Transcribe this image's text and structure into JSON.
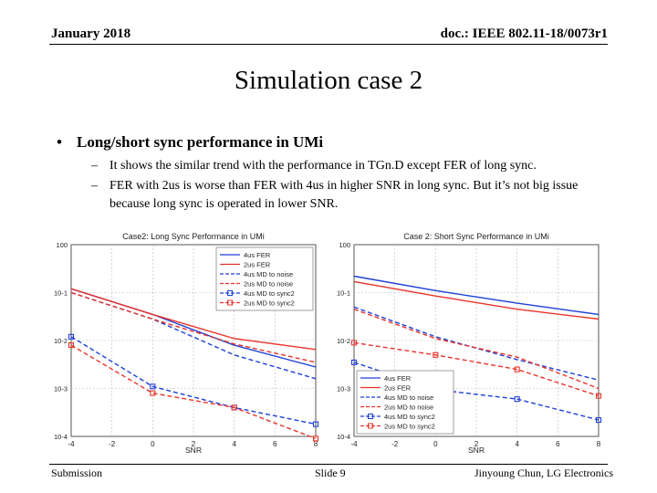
{
  "header": {
    "date": "January 2018",
    "doc": "doc.: IEEE 802.11-18/0073r1"
  },
  "title": "Simulation case 2",
  "bullet": {
    "marker": "•",
    "text": "Long/short sync performance in UMi"
  },
  "subbullets": [
    {
      "dash": "–",
      "text": "It shows the similar trend with the performance in TGn.D except FER of long sync."
    },
    {
      "dash": "–",
      "text": "FER with 2us is worse than FER with 4us in higher SNR in long sync. But it’s not big issue because long sync is operated in lower SNR."
    }
  ],
  "footer": {
    "left": "Submission",
    "center": "Slide 9",
    "right": "Jinyoung Chun, LG Electronics"
  },
  "colors": {
    "blue": "#1f3fd6",
    "red": "#e8332a"
  },
  "chart_data": [
    {
      "type": "line",
      "title": "Case2: Long Sync Performance in UMi",
      "xlabel": "SNR",
      "ylabel": "",
      "xlim": [
        -4,
        8
      ],
      "ylim": [
        0.0001,
        1
      ],
      "yscale": "log",
      "xticks": [
        "-4",
        "-2",
        "0",
        "2",
        "4",
        "6",
        "8"
      ],
      "yticks": [
        "10-4",
        "10-3",
        "10-2",
        "10-1",
        "100"
      ],
      "grid": true,
      "legend_position": "top-right",
      "x": [
        -4,
        0,
        4,
        8
      ],
      "series": [
        {
          "name": "4us FER",
          "color": "blue",
          "dash": "solid",
          "marker": "none",
          "values": [
            0.12,
            0.035,
            0.008,
            0.0028
          ]
        },
        {
          "name": "2us FER",
          "color": "red",
          "dash": "solid",
          "marker": "none",
          "values": [
            0.12,
            0.035,
            0.011,
            0.0065
          ]
        },
        {
          "name": "4us MD to noise",
          "color": "blue",
          "dash": "dashed",
          "marker": "none",
          "values": [
            0.1,
            0.028,
            0.005,
            0.0016
          ]
        },
        {
          "name": "2us MD to noise",
          "color": "red",
          "dash": "dashed",
          "marker": "none",
          "values": [
            0.1,
            0.028,
            0.0085,
            0.0035
          ]
        },
        {
          "name": "4us MD to sync2",
          "color": "blue",
          "dash": "dashed",
          "marker": "square",
          "values": [
            0.012,
            0.0011,
            0.0004,
            0.00018
          ]
        },
        {
          "name": "2us MD to sync2",
          "color": "red",
          "dash": "dashed",
          "marker": "square",
          "values": [
            0.008,
            0.0008,
            0.0004,
            9e-05
          ]
        }
      ]
    },
    {
      "type": "line",
      "title": "Case 2: Short Sync Performance in UMi",
      "xlabel": "SNR",
      "ylabel": "",
      "xlim": [
        -4,
        8
      ],
      "ylim": [
        0.0001,
        1
      ],
      "yscale": "log",
      "xticks": [
        "-4",
        "-2",
        "0",
        "2",
        "4",
        "6",
        "8"
      ],
      "yticks": [
        "10-4",
        "10-3",
        "10-2",
        "10-1",
        "100"
      ],
      "grid": true,
      "legend_position": "bottom-left",
      "x": [
        -4,
        0,
        4,
        8
      ],
      "series": [
        {
          "name": "4us FER",
          "color": "blue",
          "dash": "solid",
          "marker": "none",
          "values": [
            0.22,
            0.11,
            0.06,
            0.035
          ]
        },
        {
          "name": "2us FER",
          "color": "red",
          "dash": "solid",
          "marker": "none",
          "values": [
            0.17,
            0.085,
            0.045,
            0.028
          ]
        },
        {
          "name": "4us MD to noise",
          "color": "blue",
          "dash": "dashed",
          "marker": "none",
          "values": [
            0.05,
            0.012,
            0.004,
            0.0015
          ]
        },
        {
          "name": "2us MD to noise",
          "color": "red",
          "dash": "dashed",
          "marker": "none",
          "values": [
            0.045,
            0.011,
            0.0045,
            0.001
          ]
        },
        {
          "name": "4us MD to sync2",
          "color": "blue",
          "dash": "dashed",
          "marker": "square",
          "values": [
            0.0035,
            0.00095,
            0.0006,
            0.00022
          ]
        },
        {
          "name": "2us MD to sync2",
          "color": "red",
          "dash": "dashed",
          "marker": "square",
          "values": [
            0.009,
            0.005,
            0.0025,
            0.0007
          ]
        }
      ]
    }
  ]
}
